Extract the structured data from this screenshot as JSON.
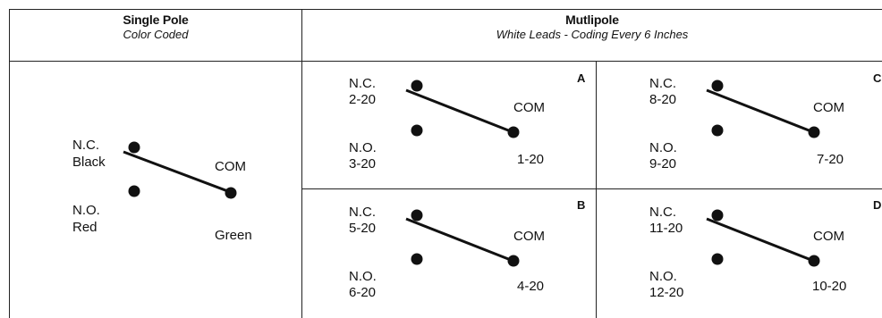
{
  "headers": {
    "single": {
      "title": "Single Pole",
      "subtitle": "Color Coded"
    },
    "multi": {
      "title": "Mutlipole",
      "subtitle": "White Leads - Coding Every 6 Inches"
    }
  },
  "single_pole": {
    "nc_label": "N.C.",
    "nc_color": "Black",
    "no_label": "N.O.",
    "no_color": "Red",
    "com_label": "COM",
    "com_color": "Green"
  },
  "multipole": [
    {
      "letter": "A",
      "nc_label": "N.C.",
      "nc_lead": "2-20",
      "no_label": "N.O.",
      "no_lead": "3-20",
      "com_label": "COM",
      "com_lead": "1-20"
    },
    {
      "letter": "C",
      "nc_label": "N.C.",
      "nc_lead": "8-20",
      "no_label": "N.O.",
      "no_lead": "9-20",
      "com_label": "COM",
      "com_lead": "7-20"
    },
    {
      "letter": "B",
      "nc_label": "N.C.",
      "nc_lead": "5-20",
      "no_label": "N.O.",
      "no_lead": "6-20",
      "com_label": "COM",
      "com_lead": "4-20"
    },
    {
      "letter": "D",
      "nc_label": "N.C.",
      "nc_lead": "11-20",
      "no_label": "N.O.",
      "no_lead": "12-20",
      "com_label": "COM",
      "com_lead": "10-20"
    }
  ]
}
